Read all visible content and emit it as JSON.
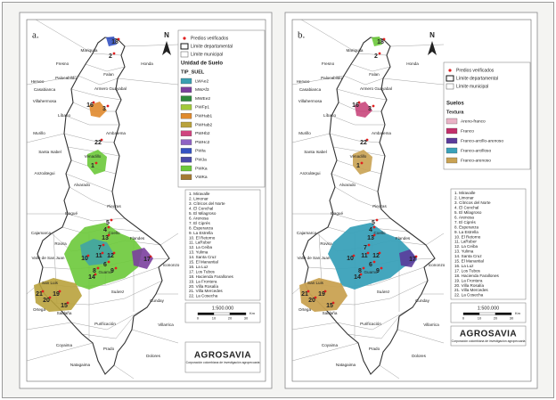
{
  "panels": [
    {
      "label": "a.",
      "north": "N",
      "legend": {
        "items": [
          "Predios verificados",
          "Límite departamental",
          "Límite municipal"
        ],
        "title": "Unidad de Suelo",
        "subtitle": "TIP_SUEL",
        "classes": [
          {
            "name": "LWAe2",
            "color": "#3a9fb0"
          },
          {
            "name": "MWAf3",
            "color": "#7b3f9e"
          },
          {
            "name": "MWEe2",
            "color": "#2f8a3c"
          },
          {
            "name": "PWFp1",
            "color": "#a3c93a"
          },
          {
            "name": "PWHab1",
            "color": "#e08a2e"
          },
          {
            "name": "PWHab2",
            "color": "#b9a23c"
          },
          {
            "name": "PWHb2",
            "color": "#d0457f"
          },
          {
            "name": "PWHc2",
            "color": "#8f63c4"
          },
          {
            "name": "PWIa",
            "color": "#3452c2"
          },
          {
            "name": "PWJa",
            "color": "#4a4aa8"
          },
          {
            "name": "PWKa",
            "color": "#6cc93a"
          },
          {
            "name": "VWKa",
            "color": "#a47a34"
          }
        ]
      },
      "farms": [
        "1. Miravalle",
        "2. Limonar",
        "3. Cítricos del Norte",
        "4. El Conchal",
        "5. El Milagroso",
        "6. Arenosa",
        "7. El Ciprés",
        "8. Esperanza",
        "9. La Estrella",
        "10. El Retorno",
        "11. LaRuber",
        "12. La Ceiba",
        "13. Yulima",
        "14. Santa Cruz",
        "15. El Manantial",
        "16. La Luz",
        "17. Los Tubos",
        "18. Hacienda Farallones",
        "19. La Frontera",
        "20. Villa Rosalía",
        "21. Villa Mercedes",
        "22. La Cosecha"
      ],
      "scale": "1:500.000",
      "scale_ticks": [
        0,
        10,
        20,
        30
      ],
      "scale_unit": "Km",
      "logo": "AGROSAVIA",
      "logo_tagline": "Corporación colombiana de investigación agropecuaria",
      "municipalities": [
        "Mariquita",
        "Honda",
        "Fresno",
        "Falan",
        "Palocabildo",
        "Herveo",
        "Casabianca",
        "Armero Guayabal",
        "Villahermosa",
        "Líbano",
        "Murillo",
        "Ambalema",
        "Santa Isabel",
        "Venadillo",
        "Anzoátegui",
        "Alvarado",
        "Ibagué",
        "Piedras",
        "Coello",
        "Flandes",
        "Cajamarca",
        "Rovira",
        "Valle de San Juan",
        "San Luis",
        "Guamo",
        "Suárez",
        "Icononzo",
        "Ortega",
        "Saldaña",
        "Purificación",
        "Cunday",
        "Villarrica",
        "Coyaima",
        "Prado",
        "Dolores",
        "Natagaima"
      ],
      "farm_labels": [
        "18",
        "2",
        "16",
        "3",
        "22",
        "1",
        "5",
        "4",
        "13",
        "10",
        "12",
        "11",
        "6",
        "8",
        "9",
        "7",
        "14",
        "17",
        "21",
        "20",
        "19",
        "15"
      ]
    },
    {
      "label": "b.",
      "north": "N",
      "legend": {
        "items": [
          "Predios verificados",
          "Límite departamental",
          "Límite municipal"
        ],
        "title": "Suelos",
        "subtitle": "Textura",
        "classes": [
          {
            "name": "Areno-franco",
            "color": "#e9b3c6"
          },
          {
            "name": "Franco",
            "color": "#c2306b"
          },
          {
            "name": "Franco-arcillo-arenoso",
            "color": "#5b3c9b"
          },
          {
            "name": "Franco-arcilloso",
            "color": "#3aa1b9"
          },
          {
            "name": "Franco-arenoso",
            "color": "#c9a252"
          }
        ]
      },
      "farms": [
        "1. Miravalle",
        "2. Limonar",
        "3. Cítricos del Norte",
        "4. El Conchal",
        "5. El Milagroso",
        "6. Arenosa",
        "7. El Ciprés",
        "8. Esperanza",
        "9. La Estrella",
        "10. El Retorno",
        "11. LaRuber",
        "12. La Ceiba",
        "13. Yulima",
        "14. Santa Cruz",
        "15. El Manantial",
        "16. La Luz",
        "17. Los Tubos",
        "18. Hacienda Farallones",
        "19. La Frontera",
        "20. Villa Rosalía",
        "21. Villa Mercedes",
        "22. La Cosecha"
      ],
      "scale": "1:500.000",
      "scale_ticks": [
        0,
        10,
        20,
        30
      ],
      "scale_unit": "Km",
      "logo": "AGROSAVIA",
      "logo_tagline": "Corporación colombiana de investigación agropecuaria",
      "municipalities": [
        "Mariquita",
        "Honda",
        "Fresno",
        "Falan",
        "Palocabildo",
        "Herveo",
        "Casabianca",
        "Armero Guayabal",
        "Villahermosa",
        "Líbano",
        "Murillo",
        "Ambalema",
        "Santa Isabel",
        "Venadillo",
        "Anzoátegui",
        "Alvarado",
        "Ibagué",
        "Piedras",
        "Coello",
        "Flandes",
        "Cajamarca",
        "Rovira",
        "Valle de San Juan",
        "San Luis",
        "Guamo",
        "Suárez",
        "Icononzo",
        "Ortega",
        "Saldaña",
        "Purificación",
        "Cunday",
        "Villarrica",
        "Coyaima",
        "Prado",
        "Dolores",
        "Natagaima"
      ],
      "farm_labels": [
        "18",
        "2",
        "16",
        "3",
        "22",
        "1",
        "5",
        "4",
        "13",
        "10",
        "12",
        "11",
        "6",
        "8",
        "9",
        "7",
        "14",
        "17",
        "21",
        "20",
        "19",
        "15"
      ]
    }
  ]
}
